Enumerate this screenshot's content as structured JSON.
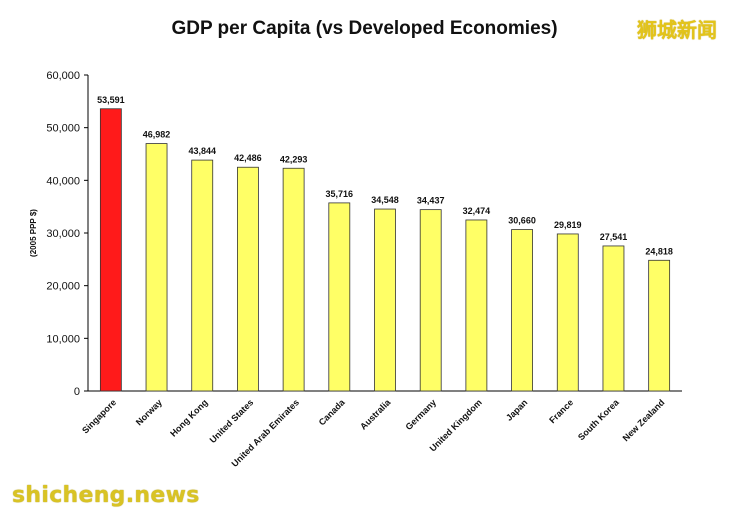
{
  "watermark_cn": "狮城新闻",
  "watermark_en": "shicheng.news",
  "chart_data": {
    "type": "bar",
    "title": "GDP per Capita (vs Developed Economies)",
    "ylabel": "(2005 PPP $)",
    "xlabel": "",
    "ylim": [
      0,
      60000
    ],
    "yticks": [
      0,
      10000,
      20000,
      30000,
      40000,
      50000,
      60000
    ],
    "ytick_labels": [
      "0",
      "10,000",
      "20,000",
      "30,000",
      "40,000",
      "50,000",
      "60,000"
    ],
    "grid": false,
    "categories": [
      "Singapore",
      "Norway",
      "Hong Kong",
      "United States",
      "United Arab Emirates",
      "Canada",
      "Australia",
      "Germany",
      "United Kingdom",
      "Japan",
      "France",
      "South Korea",
      "New Zealand"
    ],
    "values": [
      53591,
      46982,
      43844,
      42486,
      42293,
      35716,
      34548,
      34437,
      32474,
      30660,
      29819,
      27541,
      24818
    ],
    "data_labels": [
      "53,591",
      "46,982",
      "43,844",
      "42,486",
      "42,293",
      "35,716",
      "34,548",
      "34,437",
      "32,474",
      "30,660",
      "29,819",
      "27,541",
      "24,818"
    ],
    "colors": {
      "highlight": "#ff1a1a",
      "default": "#ffff66",
      "bar_stroke": "#333333",
      "axis": "#000000"
    },
    "highlight_index": 0
  }
}
